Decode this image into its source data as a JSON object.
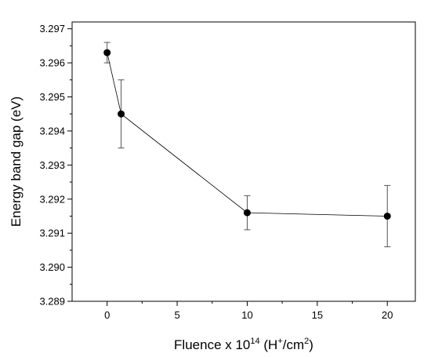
{
  "chart_data": {
    "type": "scatter",
    "connected": true,
    "title": "",
    "xlabel": {
      "prefix": "Fluence x 10",
      "exp": "14",
      "middle": " (H",
      "plus": "+",
      "unit": "/cm",
      "unit_exp": "2",
      "suffix": ")"
    },
    "ylabel": "Energy band gap (eV)",
    "xlim": [
      -2.5,
      22
    ],
    "ylim": [
      3.289,
      3.2972
    ],
    "xticks": [
      "0",
      "5",
      "10",
      "15",
      "20"
    ],
    "yticks": [
      "3.289",
      "3.290",
      "3.291",
      "3.292",
      "3.293",
      "3.294",
      "3.295",
      "3.296",
      "3.297"
    ],
    "grid": false,
    "series": [
      {
        "x": [
          0,
          1,
          10,
          20
        ],
        "y": [
          3.2963,
          3.2945,
          3.2916,
          3.2915
        ],
        "yerr_low": [
          3.296,
          3.2935,
          3.2911,
          3.2906
        ],
        "yerr_high": [
          3.2966,
          3.2955,
          3.2921,
          3.2924
        ]
      }
    ],
    "colors": {
      "line": "#000000",
      "marker": "#000000",
      "errorbar": "#555555"
    }
  }
}
